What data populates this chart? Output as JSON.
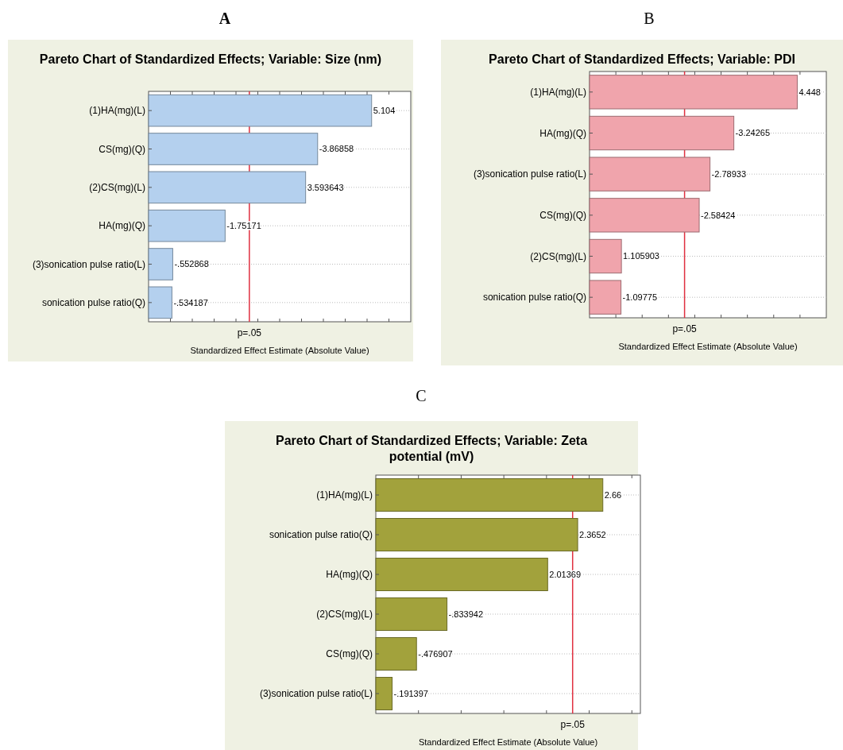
{
  "chart_data": [
    {
      "type": "bar",
      "orientation": "horizontal",
      "title": "Pareto Chart of Standardized Effects; Variable: Size (nm)",
      "xlabel": "Standardized Effect Estimate (Absolute Value)",
      "annotations": [
        "A",
        {
          "text": "-3.86858",
          "x": 3.86858,
          "y": "CS(mg)(Q)"
        },
        {
          "text": "-1.75171",
          "x": 1.75171,
          "y": "HA(mg)(Q)"
        },
        {
          "text": "-.552868",
          "x": 0.552868,
          "y": "(3)sonication pulse ratio(L)"
        },
        {
          "text": "-.534187",
          "x": 0.534187,
          "y": "sonication pulse ratio(Q)"
        }
      ],
      "categories": [
        "(1)HA(mg)(L)",
        "CS(mg)(Q)",
        "(2)CS(mg)(L)",
        "HA(mg)(Q)",
        "(3)sonication pulse ratio(L)",
        "sonication pulse ratio(Q)"
      ],
      "values": [
        5.104,
        3.86858,
        3.593643,
        1.75171,
        0.552868,
        0.534187
      ],
      "value_labels": [
        "5.104",
        null,
        "3.593643",
        null,
        null,
        null
      ],
      "color": "#b4d0ee",
      "xlim": [
        0,
        6
      ],
      "xticks": [
        {
          "value": 0.5,
          "label": null
        },
        {
          "value": 1,
          "label": null
        },
        {
          "value": 1.5,
          "label": null
        },
        {
          "value": 2,
          "label": null
        },
        {
          "value": 2.5,
          "label": null
        },
        {
          "value": 3,
          "label": null
        },
        {
          "value": 3.5,
          "label": null
        },
        {
          "value": 4,
          "label": null
        },
        {
          "value": 4.5,
          "label": null
        },
        {
          "value": 5,
          "label": null
        },
        {
          "value": 5.5,
          "label": null
        }
      ],
      "ref_lines": [
        {
          "axis": "x",
          "value": 2.306,
          "label": "p=.05",
          "color": "#e03040"
        }
      ],
      "grid": "y",
      "tick_labels": "y"
    },
    {
      "type": "bar",
      "orientation": "horizontal",
      "title": "Pareto Chart of Standardized Effects; Variable: PDI",
      "xlabel": "Standardized Effect Estimate (Absolute Value)",
      "annotations": [
        "B",
        {
          "text": "-3.24265",
          "x": 3.24265,
          "y": "HA(mg)(Q)"
        },
        {
          "text": "-2.78933",
          "x": 2.78933,
          "y": "(3)sonication pulse ratio(L)"
        },
        {
          "text": "-2.58424",
          "x": 2.58424,
          "y": "CS(mg)(Q)"
        },
        {
          "text": "-1.09775",
          "x": 1.09775,
          "y": "sonication pulse ratio(Q)"
        }
      ],
      "categories": [
        "(1)HA(mg)(L)",
        "HA(mg)(Q)",
        "(3)sonication pulse ratio(L)",
        "CS(mg)(Q)",
        "(2)CS(mg)(L)",
        "sonication pulse ratio(Q)"
      ],
      "values": [
        4.448,
        3.24265,
        2.78933,
        2.58424,
        1.105903,
        1.09775
      ],
      "value_labels": [
        "4.448",
        null,
        null,
        null,
        "1.105903",
        null
      ],
      "color": "#f0a4ac",
      "xlim": [
        0.5,
        5
      ],
      "xticks": [
        {
          "value": 1,
          "label": null
        },
        {
          "value": 1.5,
          "label": null
        },
        {
          "value": 2,
          "label": null
        },
        {
          "value": 2.5,
          "label": null
        },
        {
          "value": 3,
          "label": null
        },
        {
          "value": 3.5,
          "label": null
        },
        {
          "value": 4,
          "label": null
        },
        {
          "value": 4.5,
          "label": null
        }
      ],
      "ref_lines": [
        {
          "axis": "x",
          "value": 2.306,
          "label": "p=.05",
          "color": "#e03040"
        }
      ],
      "grid": "y",
      "tick_labels": "y"
    },
    {
      "type": "bar",
      "orientation": "horizontal",
      "title": "Pareto Chart of Standardized Effects; Variable: Zeta potential (mV)",
      "xlabel": "Standardized Effect Estimate (Absolute Value)",
      "annotations": [
        "C",
        {
          "text": "-.833942",
          "x": 0.833942,
          "y": "(2)CS(mg)(L)"
        },
        {
          "text": "-.476907",
          "x": 0.476907,
          "y": "CS(mg)(Q)"
        },
        {
          "text": "-.191397",
          "x": 0.191397,
          "y": "(3)sonication pulse ratio(L)"
        }
      ],
      "categories": [
        "(1)HA(mg)(L)",
        "sonication pulse ratio(Q)",
        "HA(mg)(Q)",
        "(2)CS(mg)(L)",
        "CS(mg)(Q)",
        "(3)sonication pulse ratio(L)"
      ],
      "values": [
        2.66,
        2.3652,
        2.01369,
        0.833942,
        0.476907,
        0.191397
      ],
      "value_labels": [
        "2.66",
        "2.3652",
        "2.01369",
        null,
        null,
        null
      ],
      "color": "#a2a23c",
      "xlim": [
        0,
        3.1
      ],
      "xticks": [
        {
          "value": 0.5,
          "label": null
        },
        {
          "value": 1,
          "label": null
        },
        {
          "value": 1.5,
          "label": null
        },
        {
          "value": 2,
          "label": null
        },
        {
          "value": 2.5,
          "label": null
        },
        {
          "value": 3,
          "label": null
        }
      ],
      "ref_lines": [
        {
          "axis": "x",
          "value": 2.306,
          "label": "p=.05",
          "color": "#e03040"
        }
      ],
      "grid": "y",
      "tick_labels": "y"
    }
  ]
}
